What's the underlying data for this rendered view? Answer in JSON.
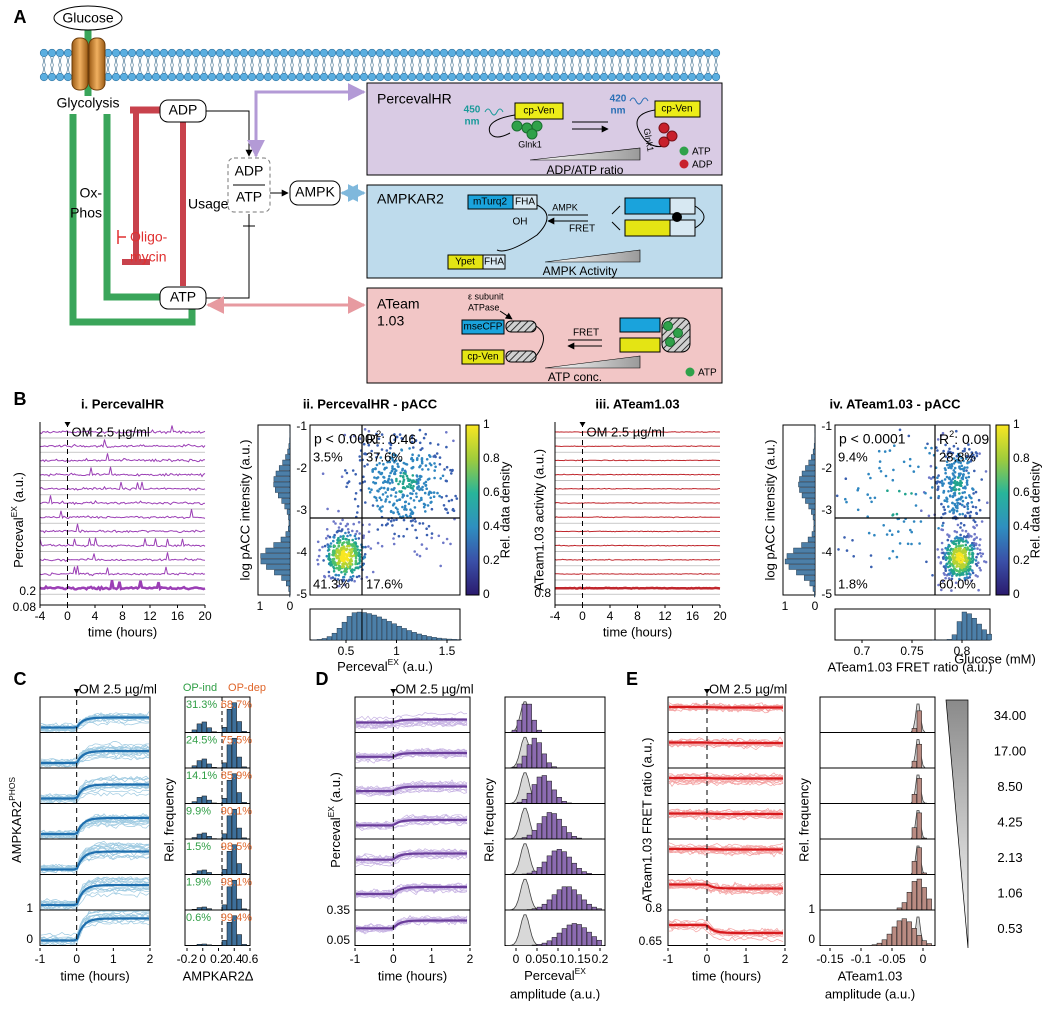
{
  "panel_labels": [
    "A",
    "B",
    "C",
    "D",
    "E"
  ],
  "a": {
    "glucose": "Glucose",
    "glycolysis": "Glycolysis",
    "adp": "ADP",
    "oxphos": [
      "Ox-",
      "Phos"
    ],
    "usage": "Usage",
    "oligomycin": [
      "Oligo-",
      "mycin"
    ],
    "ratio_num": "ADP",
    "ratio_den": "ATP",
    "ampk": "AMPK",
    "atp": "ATP",
    "perceval": {
      "title": "PercevalHR",
      "wl1": [
        "450",
        "nm"
      ],
      "wl2": [
        "420",
        "nm"
      ],
      "cpven1": "cp-Ven",
      "cpven2": "cp-Ven",
      "glnk1": "Glnk1",
      "glnk2": "Glnk1",
      "ratio": "ADP/ATP ratio",
      "legend_atp": "ATP",
      "legend_adp": "ADP"
    },
    "ampkar2": {
      "title": "AMPKAR2",
      "mturq2": "mTurq2",
      "fha1": "FHA",
      "oh": "OH",
      "ampk": "AMPK",
      "fret": "FRET",
      "ypet": "Ypet",
      "fha2": "FHA",
      "activity": "AMPK Activity"
    },
    "ateam": {
      "title": [
        "ATeam",
        "1.03"
      ],
      "subunit": [
        "ε subunit",
        "ATPase"
      ],
      "msecfp": "mseCFP",
      "fret": "FRET",
      "cpven": "cp-Ven",
      "conc": "ATP conc.",
      "legend_atp": "ATP"
    }
  },
  "b": {
    "i": {
      "title": "i. PercevalHR",
      "annotation": "OM 2.5 µg/ml",
      "ylabel": {
        "main": "Perceval",
        "sup": "EX",
        "unit": " (a.u.)"
      },
      "yticks": [
        "0.2",
        "0.08"
      ],
      "xticks": [
        "-4",
        "0",
        "4",
        "8",
        "12",
        "16",
        "20"
      ],
      "xlabel": "time (hours)"
    },
    "ii": {
      "title": "ii. PercevalHR - pACC",
      "pvalue": "p < 0.0001",
      "r2": {
        "main": "R",
        "sup": "2",
        "unit": ": 0.46"
      },
      "quadrants": [
        "3.5%",
        "37.6%",
        "41.3%",
        "17.6%"
      ],
      "ylabel": "log pACC  intensity (a.u.)",
      "yticks": [
        "-1",
        "-2",
        "-3",
        "-4",
        "-5"
      ],
      "hist_ticks": [
        "1",
        "0"
      ],
      "colorbar_ticks": [
        "1",
        "0.8",
        "0.6",
        "0.4",
        "0.2",
        "0"
      ],
      "colorbar_label": "Rel. data density",
      "xticks": [
        "0.5",
        "1",
        "1.5"
      ],
      "xlabel": {
        "main": "Perceval",
        "sup": "EX",
        "unit": " (a.u.)"
      }
    },
    "iii": {
      "title": "iii. ATeam1.03",
      "annotation": "OM 2.5 µg/ml",
      "ylabel": "ATeam1.03 activity (a.u.)",
      "yticks": [
        "0.8"
      ],
      "xticks": [
        "-4",
        "0",
        "4",
        "8",
        "12",
        "16",
        "20"
      ],
      "xlabel": "time (hours)"
    },
    "iv": {
      "title": "iv. ATeam1.03 - pACC",
      "pvalue": "p < 0.0001",
      "r2": {
        "main": "R",
        "sup": "2",
        "unit": ": 0.09"
      },
      "quadrants": [
        "9.4%",
        "28.8%",
        "1.8%",
        "60.0%"
      ],
      "ylabel": "log pACC  intensity (a.u.)",
      "yticks": [
        "-1",
        "-2",
        "-3",
        "-4",
        "-5"
      ],
      "hist_ticks": [
        "1",
        "0"
      ],
      "colorbar_ticks": [
        "1",
        "0.8",
        "0.6",
        "0.4",
        "0.2",
        "0"
      ],
      "colorbar_label": "Rel. data density",
      "xticks": [
        "0.7",
        "0.75",
        "0.8"
      ],
      "xlabel": "ATeam1.03 FRET ratio (a.u.)"
    }
  },
  "c": {
    "annotation": "OM 2.5 µg/ml",
    "ylabel": {
      "main": "AMPKAR2",
      "sup": "PHOS"
    },
    "yticks": [
      "1",
      "0"
    ],
    "xticks": [
      "-1",
      "0",
      "1",
      "2"
    ],
    "xlabel": "time (hours)",
    "hist_ylabel": "Rel. frequency",
    "op_ind": "OP-ind",
    "op_dep": "OP-dep",
    "op_ind_pct": [
      "31.3%",
      "24.5%",
      "14.1%",
      "9.9%",
      "1.5%",
      "1.9%",
      "0.6%"
    ],
    "op_dep_pct": [
      "68.7%",
      "75.5%",
      "85.9%",
      "90.1%",
      "98.5%",
      "98.1%",
      "99.4%"
    ],
    "hist_xticks": [
      "-0.2",
      "0",
      "0.2",
      "0.4",
      "0.6"
    ],
    "hist_xlabel": "AMPKAR2Δ"
  },
  "d": {
    "annotation": "OM 2.5 µg/ml",
    "ylabel": {
      "main": "Perceval",
      "sup": "EX",
      "unit": " (a.u.)"
    },
    "yticks": [
      "0.35",
      "0.05"
    ],
    "xticks": [
      "-1",
      "0",
      "1",
      "2"
    ],
    "xlabel": "time (hours)",
    "hist_ylabel": "Rel. frequency",
    "hist_xticks": [
      "0",
      "0.05",
      "0.1",
      "0.15",
      "0.2"
    ],
    "hist_xlabel": {
      "main": "Perceval",
      "sup": "EX"
    },
    "hist_xlabel2": "amplitude (a.u.)"
  },
  "e": {
    "annotation": "OM 2.5 µg/ml",
    "ylabel": "ATeam1.03 FRET ratio (a.u.)",
    "yticks": [
      "0.8",
      "0.65"
    ],
    "xticks": [
      "-1",
      "0",
      "1",
      "2"
    ],
    "xlabel": "time (hours)",
    "hist_ylabel": "Rel. frequency",
    "hist_yticks": [
      "1",
      "0"
    ],
    "hist_xticks": [
      "-0.15",
      "-0.1",
      "-0.05",
      "0"
    ],
    "hist_xlabel": "ATeam1.03",
    "hist_xlabel2": "amplitude (a.u.)",
    "legend_title": "Glucose (mM)",
    "glucose": [
      "34.00",
      "17.00",
      "8.50",
      "4.25",
      "2.13",
      "1.06",
      "0.53"
    ]
  }
}
